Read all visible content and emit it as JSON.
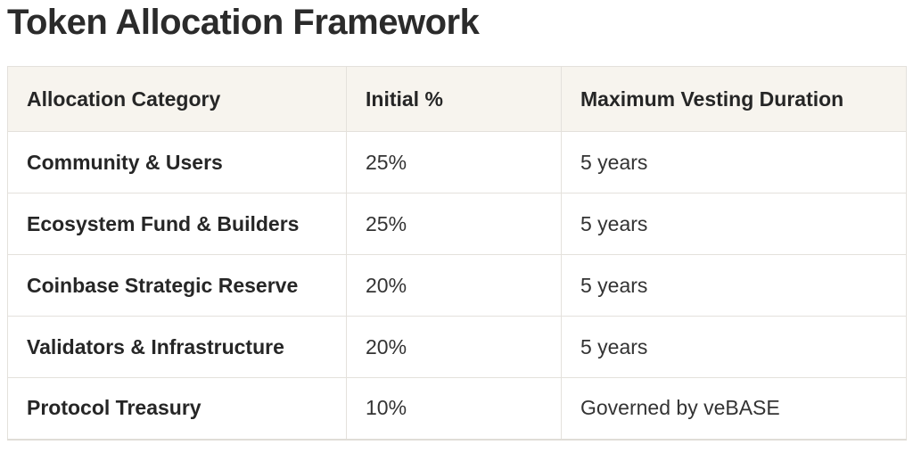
{
  "page": {
    "title": "Token Allocation Framework"
  },
  "table": {
    "headers": [
      "Allocation Category",
      "Initial %",
      "Maximum Vesting Duration"
    ],
    "rows": [
      {
        "category": "Community & Users",
        "initial_pct": "25%",
        "vesting": "5 years"
      },
      {
        "category": "Ecosystem Fund & Builders",
        "initial_pct": "25%",
        "vesting": "5 years"
      },
      {
        "category": "Coinbase Strategic Reserve",
        "initial_pct": "20%",
        "vesting": "5 years"
      },
      {
        "category": "Validators & Infrastructure",
        "initial_pct": "20%",
        "vesting": "5 years"
      },
      {
        "category": "Protocol Treasury",
        "initial_pct": "10%",
        "vesting": "Governed by veBASE"
      }
    ]
  },
  "colors": {
    "title_text": "#2b2b2b",
    "header_background": "#f7f4ee",
    "border": "#e4e1dc",
    "cell_text": "#333333",
    "bold_cell_text": "#262626",
    "row_background": "#ffffff"
  },
  "chart_data": {
    "type": "table",
    "title": "Token Allocation Framework",
    "columns": [
      "Allocation Category",
      "Initial %",
      "Maximum Vesting Duration"
    ],
    "rows": [
      [
        "Community & Users",
        "25%",
        "5 years"
      ],
      [
        "Ecosystem Fund & Builders",
        "25%",
        "5 years"
      ],
      [
        "Coinbase Strategic Reserve",
        "20%",
        "5 years"
      ],
      [
        "Validators & Infrastructure",
        "20%",
        "5 years"
      ],
      [
        "Protocol Treasury",
        "10%",
        "Governed by veBASE"
      ]
    ]
  }
}
